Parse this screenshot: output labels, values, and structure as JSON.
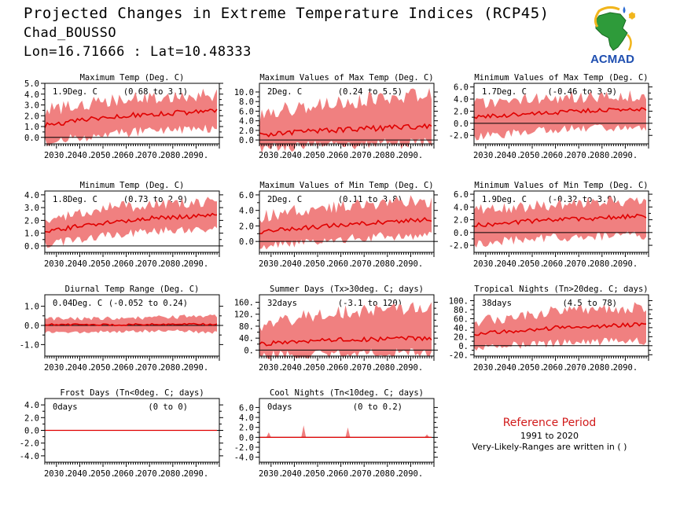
{
  "header": {
    "title": "Projected Changes in Extreme Temperature Indices (RCP45)",
    "station": "Chad_BOUSSO",
    "coords": "Lon=16.71666 : Lat=10.48333"
  },
  "logo": {
    "text": "ACMAD",
    "icon": "africa-map-logo-icon"
  },
  "reference": {
    "title": "Reference Period",
    "years": "1991 to 2020",
    "note": "Very-Likely-Ranges are written in ( )"
  },
  "colors": {
    "band": "#f08080",
    "mean": "#e00000",
    "zero_line": "#000000"
  },
  "x_ticks": [
    "2030.",
    "2040.",
    "2050.",
    "2060.",
    "2070.",
    "2080.",
    "2090."
  ],
  "chart_data": [
    {
      "type": "area",
      "title": "Maximum Temp (Deg. C)",
      "value": "1.9Deg. C",
      "range": "(0.68 to 3.1)",
      "xlim": [
        2025,
        2100
      ],
      "ylim": [
        -0.6,
        5.0
      ],
      "yticks": [
        0,
        1,
        2,
        3,
        4,
        5
      ],
      "yticklabels": [
        "0.0",
        "1.0",
        "2.0",
        "3.0",
        "4.0",
        "5.0"
      ],
      "series": [
        {
          "x": [
            2025,
            2035,
            2045,
            2055,
            2065,
            2075,
            2085,
            2099
          ],
          "y": [
            1.1,
            1.4,
            1.7,
            1.9,
            2.1,
            2.2,
            2.3,
            2.4
          ]
        },
        {
          "x": [
            2025,
            2035,
            2045,
            2055,
            2065,
            2075,
            2085,
            2099
          ],
          "y": [
            0.0,
            0.3,
            0.6,
            0.8,
            1.0,
            1.1,
            1.2,
            1.3
          ]
        },
        {
          "x": [
            2025,
            2035,
            2045,
            2055,
            2065,
            2075,
            2085,
            2099
          ],
          "y": [
            2.3,
            2.6,
            2.9,
            3.1,
            3.4,
            3.5,
            3.6,
            3.7
          ]
        }
      ]
    },
    {
      "type": "area",
      "title": "Maximum Values of Max Temp (Deg. C)",
      "value": "2Deg. C",
      "range": "(0.24 to 5.5)",
      "xlim": [
        2025,
        2100
      ],
      "ylim": [
        -0.8,
        11.8
      ],
      "yticks": [
        0,
        2,
        4,
        6,
        8,
        10
      ],
      "yticklabels": [
        "0.0",
        "2.0",
        "4.0",
        "6.0",
        "8.0",
        "10.0"
      ],
      "series": [
        {
          "x": [
            2025,
            2035,
            2045,
            2055,
            2065,
            2075,
            2085,
            2099
          ],
          "y": [
            1.0,
            1.4,
            1.7,
            2.0,
            2.2,
            2.4,
            2.6,
            2.8
          ]
        },
        {
          "x": [
            2025,
            2035,
            2045,
            2055,
            2065,
            2075,
            2085,
            2099
          ],
          "y": [
            -0.4,
            -0.2,
            0.0,
            0.1,
            0.2,
            0.3,
            0.4,
            0.5
          ]
        },
        {
          "x": [
            2025,
            2035,
            2045,
            2055,
            2065,
            2075,
            2085,
            2099
          ],
          "y": [
            4.0,
            5.5,
            6.5,
            7.0,
            7.5,
            8.0,
            8.5,
            9.0
          ]
        }
      ]
    },
    {
      "type": "area",
      "title": "Minimum Values of Max Temp (Deg. C)",
      "value": "1.7Deg. C",
      "range": "(-0.46 to 3.9)",
      "xlim": [
        2025,
        2100
      ],
      "ylim": [
        -3.4,
        6.6
      ],
      "yticks": [
        -2,
        0,
        2,
        4,
        6
      ],
      "yticklabels": [
        "-2.0",
        "0.0",
        "2.0",
        "4.0",
        "6.0"
      ],
      "series": [
        {
          "x": [
            2025,
            2035,
            2045,
            2055,
            2065,
            2075,
            2085,
            2099
          ],
          "y": [
            1.0,
            1.2,
            1.5,
            1.7,
            1.9,
            2.1,
            2.2,
            2.3
          ]
        },
        {
          "x": [
            2025,
            2035,
            2045,
            2055,
            2065,
            2075,
            2085,
            2099
          ],
          "y": [
            -1.5,
            -1.2,
            -0.8,
            -0.5,
            -0.3,
            -0.1,
            0.0,
            0.1
          ]
        },
        {
          "x": [
            2025,
            2035,
            2045,
            2055,
            2065,
            2075,
            2085,
            2099
          ],
          "y": [
            2.8,
            3.2,
            3.5,
            3.7,
            3.9,
            4.0,
            4.1,
            4.3
          ]
        }
      ]
    },
    {
      "type": "area",
      "title": "Minimum Temp (Deg. C)",
      "value": "1.8Deg. C",
      "range": "(0.73 to 2.9)",
      "xlim": [
        2025,
        2100
      ],
      "ylim": [
        -0.5,
        4.3
      ],
      "yticks": [
        0,
        1,
        2,
        3,
        4
      ],
      "yticklabels": [
        "0.0",
        "1.0",
        "2.0",
        "3.0",
        "4.0"
      ],
      "series": [
        {
          "x": [
            2025,
            2035,
            2045,
            2055,
            2065,
            2075,
            2085,
            2099
          ],
          "y": [
            1.1,
            1.4,
            1.7,
            1.9,
            2.1,
            2.2,
            2.3,
            2.4
          ]
        },
        {
          "x": [
            2025,
            2035,
            2045,
            2055,
            2065,
            2075,
            2085,
            2099
          ],
          "y": [
            0.4,
            0.7,
            1.0,
            1.2,
            1.4,
            1.5,
            1.6,
            1.7
          ]
        },
        {
          "x": [
            2025,
            2035,
            2045,
            2055,
            2065,
            2075,
            2085,
            2099
          ],
          "y": [
            1.9,
            2.3,
            2.6,
            2.8,
            3.0,
            3.1,
            3.2,
            3.3
          ]
        }
      ]
    },
    {
      "type": "area",
      "title": "Maximum Values of Min Temp (Deg. C)",
      "value": "2Deg. C",
      "range": "(0.11 to 3.8)",
      "xlim": [
        2025,
        2100
      ],
      "ylim": [
        -1.4,
        6.5
      ],
      "yticks": [
        0,
        2,
        4,
        6
      ],
      "yticklabels": [
        "0.0",
        "2.0",
        "4.0",
        "6.0"
      ],
      "series": [
        {
          "x": [
            2025,
            2035,
            2045,
            2055,
            2065,
            2075,
            2085,
            2099
          ],
          "y": [
            1.2,
            1.5,
            1.8,
            2.0,
            2.2,
            2.4,
            2.6,
            2.8
          ]
        },
        {
          "x": [
            2025,
            2035,
            2045,
            2055,
            2065,
            2075,
            2085,
            2099
          ],
          "y": [
            0.0,
            0.3,
            0.6,
            0.8,
            1.0,
            1.2,
            1.3,
            1.4
          ]
        },
        {
          "x": [
            2025,
            2035,
            2045,
            2055,
            2065,
            2075,
            2085,
            2099
          ],
          "y": [
            2.8,
            3.3,
            3.7,
            4.0,
            4.3,
            4.5,
            4.7,
            4.9
          ]
        }
      ]
    },
    {
      "type": "area",
      "title": "Minimum Values of Min Temp (Deg. C)",
      "value": "1.9Deg. C",
      "range": "(-0.32 to 3.9)",
      "xlim": [
        2025,
        2100
      ],
      "ylim": [
        -3.1,
        6.5
      ],
      "yticks": [
        -2,
        0,
        2,
        4,
        6
      ],
      "yticklabels": [
        "-2.0",
        "0.0",
        "2.0",
        "4.0",
        "6.0"
      ],
      "series": [
        {
          "x": [
            2025,
            2035,
            2045,
            2055,
            2065,
            2075,
            2085,
            2099
          ],
          "y": [
            1.2,
            1.4,
            1.7,
            1.9,
            2.1,
            2.2,
            2.4,
            2.6
          ]
        },
        {
          "x": [
            2025,
            2035,
            2045,
            2055,
            2065,
            2075,
            2085,
            2099
          ],
          "y": [
            -1.0,
            -0.7,
            -0.4,
            -0.2,
            0.0,
            0.1,
            0.2,
            0.3
          ]
        },
        {
          "x": [
            2025,
            2035,
            2045,
            2055,
            2065,
            2075,
            2085,
            2099
          ],
          "y": [
            3.0,
            3.4,
            3.7,
            3.9,
            4.1,
            4.3,
            4.5,
            4.7
          ]
        }
      ]
    },
    {
      "type": "area",
      "title": "Diurnal Temp Range (Deg. C)",
      "value": "0.04Deg. C",
      "range": "(-0.052 to 0.24)",
      "xlim": [
        2025,
        2100
      ],
      "ylim": [
        -1.6,
        1.6
      ],
      "yticks": [
        -1,
        0,
        1
      ],
      "yticklabels": [
        "-1.0",
        "0.0",
        "1.0"
      ],
      "series": [
        {
          "x": [
            2025,
            2035,
            2045,
            2055,
            2065,
            2075,
            2085,
            2099
          ],
          "y": [
            0.05,
            0.04,
            0.05,
            0.03,
            0.05,
            0.06,
            0.08,
            0.05
          ]
        },
        {
          "x": [
            2025,
            2035,
            2045,
            2055,
            2065,
            2075,
            2085,
            2099
          ],
          "y": [
            -0.3,
            -0.3,
            -0.25,
            -0.25,
            -0.2,
            -0.2,
            -0.2,
            -0.3
          ]
        },
        {
          "x": [
            2025,
            2035,
            2045,
            2055,
            2065,
            2075,
            2085,
            2099
          ],
          "y": [
            0.3,
            0.3,
            0.3,
            0.3,
            0.35,
            0.35,
            0.4,
            0.4
          ]
        }
      ]
    },
    {
      "type": "area",
      "title": "Summer Days (Tx>30deg. C; days)",
      "value": "32days",
      "range": "(-3.1 to 120)",
      "xlim": [
        2025,
        2100
      ],
      "ylim": [
        -20,
        185
      ],
      "yticks": [
        0,
        40,
        80,
        120,
        160
      ],
      "yticklabels": [
        "0.",
        "40.",
        "80.",
        "120.",
        "160."
      ],
      "series": [
        {
          "x": [
            2025,
            2035,
            2045,
            2055,
            2065,
            2075,
            2085,
            2099
          ],
          "y": [
            20,
            24,
            28,
            32,
            35,
            37,
            38,
            40
          ]
        },
        {
          "x": [
            2025,
            2035,
            2045,
            2055,
            2065,
            2075,
            2085,
            2099
          ],
          "y": [
            0,
            2,
            3,
            5,
            6,
            7,
            8,
            9
          ]
        },
        {
          "x": [
            2025,
            2035,
            2045,
            2055,
            2065,
            2075,
            2085,
            2099
          ],
          "y": [
            70,
            90,
            105,
            115,
            120,
            125,
            128,
            130
          ]
        }
      ]
    },
    {
      "type": "area",
      "title": "Tropical Nights (Tn>20deg. C; days)",
      "value": "38days",
      "range": "(4.5 to 78)",
      "xlim": [
        2025,
        2100
      ],
      "ylim": [
        -23,
        113
      ],
      "yticks": [
        -20,
        0,
        20,
        40,
        60,
        80,
        100
      ],
      "yticklabels": [
        "-20.",
        "0.",
        "20.",
        "40.",
        "60.",
        "80.",
        "100."
      ],
      "series": [
        {
          "x": [
            2025,
            2035,
            2045,
            2055,
            2065,
            2075,
            2085,
            2099
          ],
          "y": [
            25,
            30,
            34,
            38,
            41,
            43,
            45,
            47
          ]
        },
        {
          "x": [
            2025,
            2035,
            2045,
            2055,
            2065,
            2075,
            2085,
            2099
          ],
          "y": [
            5,
            8,
            11,
            14,
            16,
            18,
            19,
            20
          ]
        },
        {
          "x": [
            2025,
            2035,
            2045,
            2055,
            2065,
            2075,
            2085,
            2099
          ],
          "y": [
            45,
            55,
            62,
            68,
            72,
            75,
            78,
            80
          ]
        }
      ]
    },
    {
      "type": "area",
      "title": "Frost Days (Tn<0deg. C; days)",
      "value": "0days",
      "range": "(0 to 0)",
      "xlim": [
        2025,
        2100
      ],
      "ylim": [
        -5.0,
        5.0
      ],
      "yticks": [
        -4,
        -2,
        0,
        2,
        4
      ],
      "yticklabels": [
        "-4.0",
        "-2.0",
        "0.0",
        "2.0",
        "4.0"
      ],
      "series": [
        {
          "x": [
            2025,
            2099
          ],
          "y": [
            0,
            0
          ]
        },
        {
          "x": [
            2025,
            2099
          ],
          "y": [
            0,
            0
          ]
        },
        {
          "x": [
            2025,
            2099
          ],
          "y": [
            0,
            0
          ]
        }
      ]
    },
    {
      "type": "area",
      "title": "Cool Nights (Tn<10deg. C; days)",
      "value": "0days",
      "range": "(0 to 0.2)",
      "xlim": [
        2025,
        2100
      ],
      "ylim": [
        -5.0,
        7.8
      ],
      "yticks": [
        -4,
        -2,
        0,
        2,
        4,
        6
      ],
      "yticklabels": [
        "-4.0",
        "-2.0",
        "0.0",
        "2.0",
        "4.0",
        "6.0"
      ],
      "series": [
        {
          "x": [
            2025,
            2099
          ],
          "y": [
            0,
            0
          ]
        },
        {
          "x": [
            2025,
            2099
          ],
          "y": [
            0,
            0
          ]
        },
        {
          "x": [
            2025,
            2099
          ],
          "y": [
            0,
            0
          ]
        }
      ],
      "peaks": [
        {
          "x": 2029,
          "y": 1.0
        },
        {
          "x": 2044,
          "y": 2.4
        },
        {
          "x": 2063,
          "y": 2.0
        },
        {
          "x": 2097,
          "y": 0.6
        }
      ]
    }
  ]
}
